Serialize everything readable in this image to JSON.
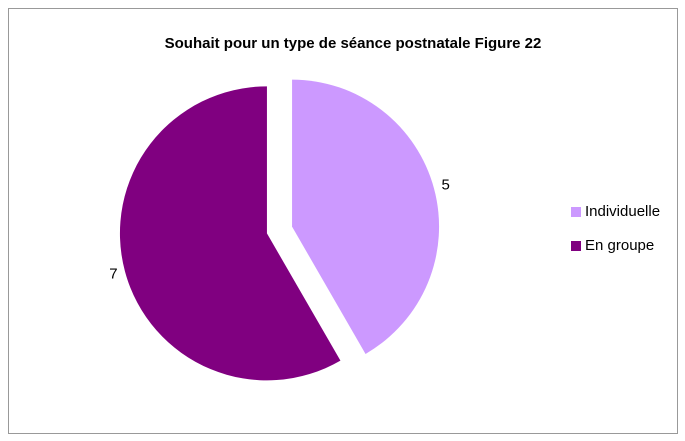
{
  "chart_data": {
    "type": "pie",
    "title": "Souhait pour un type de séance postnatale Figure 22",
    "categories": [
      "Individuelle",
      "En groupe"
    ],
    "values": [
      5,
      7
    ],
    "colors": [
      "#cc99ff",
      "#800080"
    ],
    "exploded": true,
    "legend": "right"
  }
}
